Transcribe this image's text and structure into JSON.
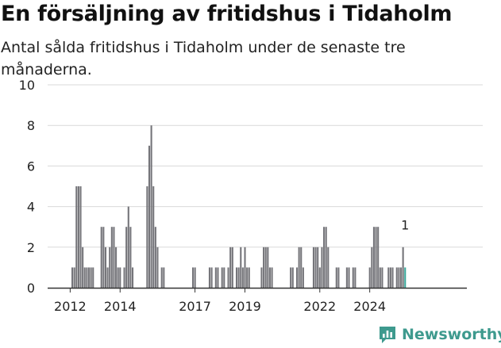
{
  "title": "En försäljning av fritidshus i Tidaholm",
  "subtitle": "Antal sålda fritidshus i Tidaholm under de senaste tre månaderna.",
  "brand": {
    "name": "Newsworthy",
    "icon": "newsworthy-logo-icon",
    "color": "#3e9a8e"
  },
  "colors": {
    "bar": "#75757a",
    "highlight": "#3aa79a",
    "grid": "#d9d9d9",
    "axis": "#333333"
  },
  "chart_data": {
    "type": "bar",
    "title": "En försäljning av fritidshus i Tidaholm",
    "subtitle": "Antal sålda fritidshus i Tidaholm under de senaste tre månaderna.",
    "xlabel": "",
    "ylabel": "",
    "ylim": [
      0,
      10
    ],
    "yticks": [
      0,
      2,
      4,
      6,
      8,
      10
    ],
    "xticks": [
      "2012",
      "2014",
      "2017",
      "2019",
      "2022",
      "2024"
    ],
    "grid": true,
    "legend": "none",
    "start_month": "2012-02",
    "frequency": "monthly",
    "values": [
      1,
      1,
      5,
      5,
      5,
      2,
      1,
      1,
      1,
      1,
      1,
      0,
      0,
      0,
      3,
      3,
      2,
      1,
      2,
      3,
      3,
      2,
      1,
      1,
      0,
      1,
      3,
      4,
      3,
      1,
      0,
      0,
      0,
      0,
      0,
      0,
      5,
      7,
      8,
      5,
      3,
      2,
      0,
      1,
      1,
      0,
      0,
      0,
      0,
      0,
      0,
      0,
      0,
      0,
      0,
      0,
      0,
      0,
      1,
      1,
      0,
      0,
      0,
      0,
      0,
      0,
      1,
      1,
      0,
      1,
      1,
      0,
      1,
      1,
      0,
      1,
      2,
      2,
      0,
      1,
      1,
      2,
      1,
      2,
      1,
      1,
      0,
      0,
      0,
      0,
      0,
      1,
      2,
      2,
      2,
      1,
      1,
      0,
      0,
      0,
      0,
      0,
      0,
      0,
      0,
      1,
      1,
      0,
      1,
      2,
      2,
      1,
      0,
      0,
      0,
      0,
      2,
      2,
      2,
      1,
      2,
      3,
      3,
      2,
      0,
      0,
      0,
      1,
      1,
      0,
      0,
      0,
      1,
      1,
      0,
      1,
      1,
      0,
      0,
      0,
      0,
      0,
      0,
      1,
      2,
      3,
      3,
      3,
      1,
      1,
      0,
      0,
      1,
      1,
      1,
      0,
      1,
      1,
      1,
      2,
      1
    ],
    "highlight_last": true,
    "annotation": {
      "text": "1",
      "target": "last"
    }
  }
}
